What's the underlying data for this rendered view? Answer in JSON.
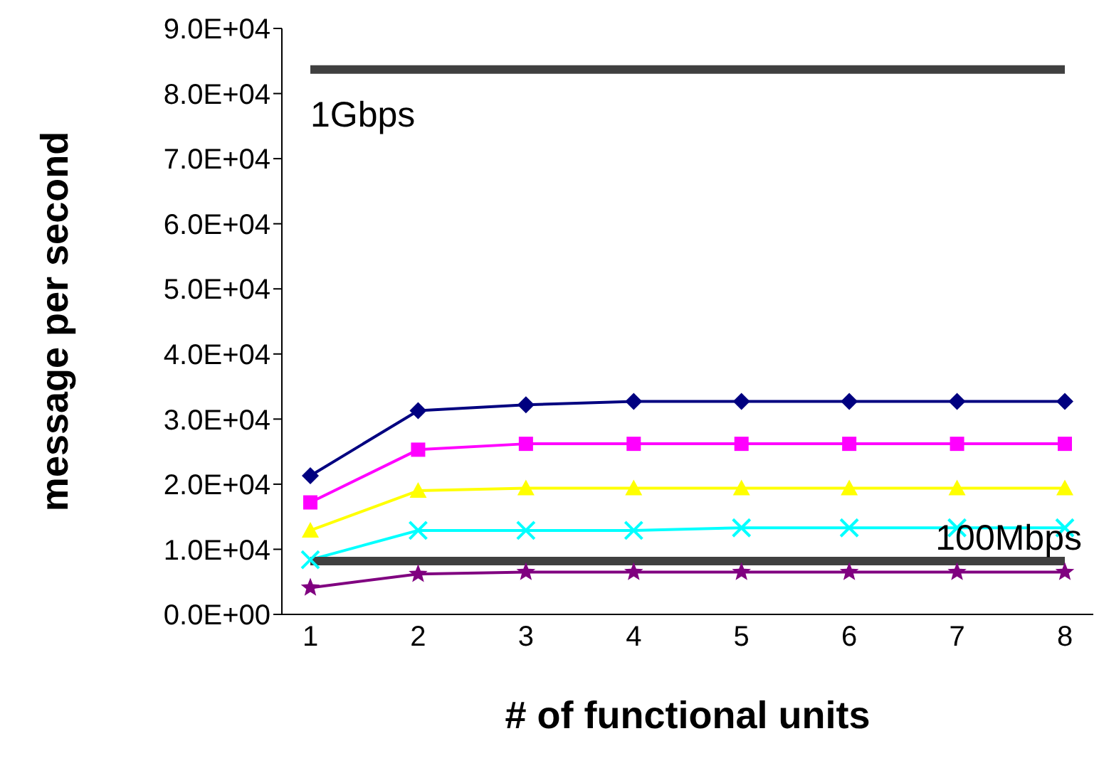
{
  "chart_data": {
    "type": "line",
    "xlabel": "# of functional units",
    "ylabel": "message per second",
    "categories": [
      "1",
      "2",
      "3",
      "4",
      "5",
      "6",
      "7",
      "8"
    ],
    "series": [
      {
        "color": "#000080",
        "marker": "diamond",
        "values": [
          21300,
          31300,
          32200,
          32700,
          32700,
          32700,
          32700,
          32700
        ]
      },
      {
        "color": "#ff00ff",
        "marker": "square",
        "values": [
          17200,
          25300,
          26200,
          26200,
          26200,
          26200,
          26200,
          26200
        ]
      },
      {
        "color": "#ffff00",
        "marker": "triangle",
        "values": [
          12900,
          19000,
          19400,
          19400,
          19400,
          19400,
          19400,
          19400
        ]
      },
      {
        "color": "#00ffff",
        "marker": "cross",
        "values": [
          8400,
          12900,
          12900,
          12900,
          13300,
          13300,
          13300,
          13300
        ]
      },
      {
        "color": "#800080",
        "marker": "star",
        "values": [
          4100,
          6200,
          6500,
          6500,
          6500,
          6500,
          6500,
          6500
        ]
      },
      {
        "color": "#404040",
        "marker": "none",
        "values": [
          83700,
          83700,
          83700,
          83700,
          83700,
          83700,
          83700,
          83700
        ]
      },
      {
        "color": "#404040",
        "marker": "none",
        "values": [
          8200,
          8200,
          8200,
          8200,
          8200,
          8200,
          8200,
          8200
        ]
      }
    ],
    "annotations": [
      {
        "text": "1Gbps",
        "x": "1",
        "y": 83700
      },
      {
        "text": "100Mbps",
        "x": "8",
        "y": 8200
      }
    ],
    "ylim": [
      0,
      90000
    ],
    "yticks": [
      {
        "value": 0,
        "label": "0.0E+00"
      },
      {
        "value": 10000,
        "label": "1.0E+04"
      },
      {
        "value": 20000,
        "label": "2.0E+04"
      },
      {
        "value": 30000,
        "label": "3.0E+04"
      },
      {
        "value": 40000,
        "label": "4.0E+04"
      },
      {
        "value": 50000,
        "label": "5.0E+04"
      },
      {
        "value": 60000,
        "label": "6.0E+04"
      },
      {
        "value": 70000,
        "label": "7.0E+04"
      },
      {
        "value": 80000,
        "label": "8.0E+04"
      },
      {
        "value": 90000,
        "label": "9.0E+04"
      }
    ],
    "grid": false,
    "legend": false
  }
}
